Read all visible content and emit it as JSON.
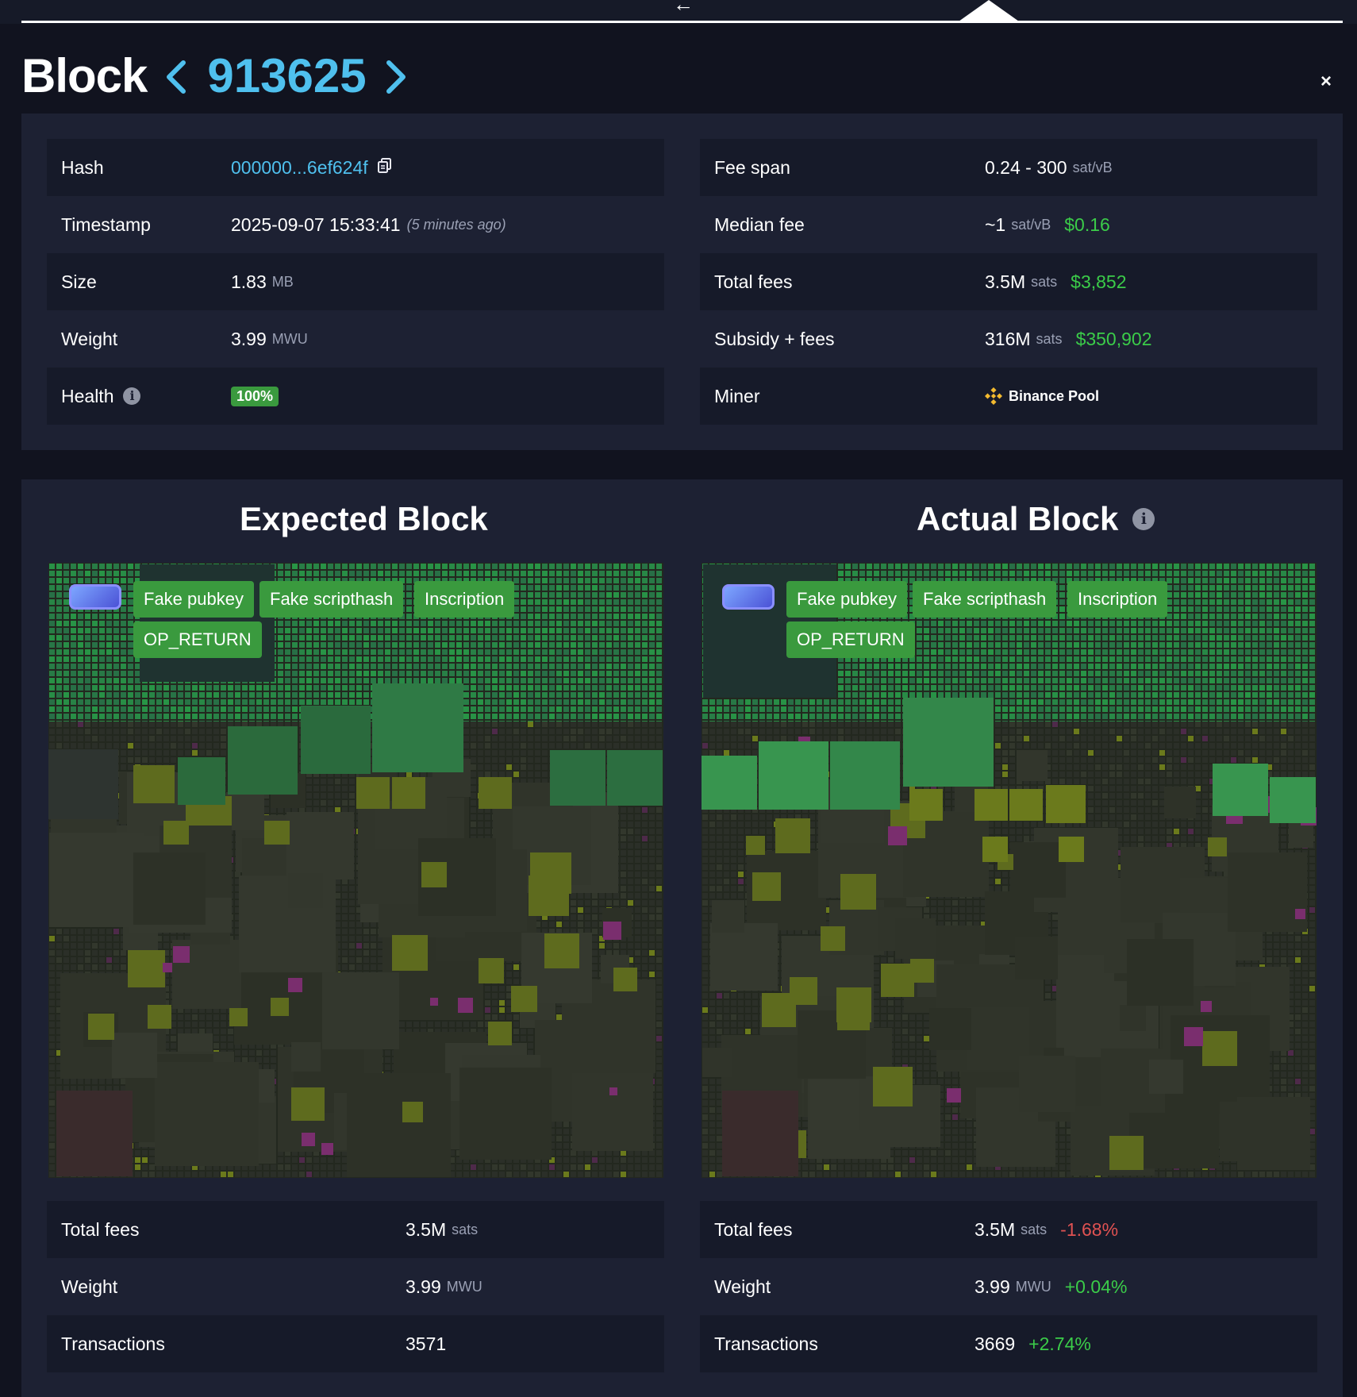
{
  "nav": {
    "back_arrow": "←"
  },
  "header": {
    "title": "Block",
    "block_number": "913625",
    "close": "×"
  },
  "details_left": [
    {
      "label": "Hash",
      "value": "000000...6ef624f",
      "icon": "copy-icon"
    },
    {
      "label": "Timestamp",
      "value": "2025-09-07 15:33:41",
      "note": "(5 minutes ago)"
    },
    {
      "label": "Size",
      "value": "1.83",
      "unit": "MB"
    },
    {
      "label": "Weight",
      "value": "3.99",
      "unit": "MWU"
    },
    {
      "label": "Health",
      "value": "100%",
      "icon": "info-icon"
    }
  ],
  "details_right": [
    {
      "label": "Fee span",
      "value": "0.24 - 300",
      "unit": "sat/vB"
    },
    {
      "label": "Median fee",
      "value": "~1",
      "unit": "sat/vB",
      "usd": "$0.16"
    },
    {
      "label": "Total fees",
      "value": "3.5M",
      "unit": "sats",
      "usd": "$3,852"
    },
    {
      "label": "Subsidy + fees",
      "value": "316M",
      "unit": "sats",
      "usd": "$350,902"
    },
    {
      "label": "Miner",
      "value": "Binance Pool",
      "icon": "binance-icon"
    }
  ],
  "expected": {
    "title": "Expected Block",
    "tags": [
      "Fake pubkey",
      "Fake scripthash",
      "Inscription",
      "OP_RETURN"
    ],
    "stats": [
      {
        "label": "Total fees",
        "value": "3.5M",
        "unit": "sats"
      },
      {
        "label": "Weight",
        "value": "3.99",
        "unit": "MWU"
      },
      {
        "label": "Transactions",
        "value": "3571"
      }
    ]
  },
  "actual": {
    "title": "Actual Block",
    "tags": [
      "Fake pubkey",
      "Fake scripthash",
      "Inscription",
      "OP_RETURN"
    ],
    "stats": [
      {
        "label": "Total fees",
        "value": "3.5M",
        "unit": "sats",
        "delta": "-1.68%"
      },
      {
        "label": "Weight",
        "value": "3.99",
        "unit": "MWU",
        "delta": "+0.04%"
      },
      {
        "label": "Transactions",
        "value": "3669",
        "delta": "+2.74%"
      }
    ]
  },
  "colors": {
    "accent": "#4fc0ee",
    "positive": "#3bcc49",
    "negative": "#e05252",
    "tag": "#3a9a3e",
    "panel": "#1d2133"
  }
}
